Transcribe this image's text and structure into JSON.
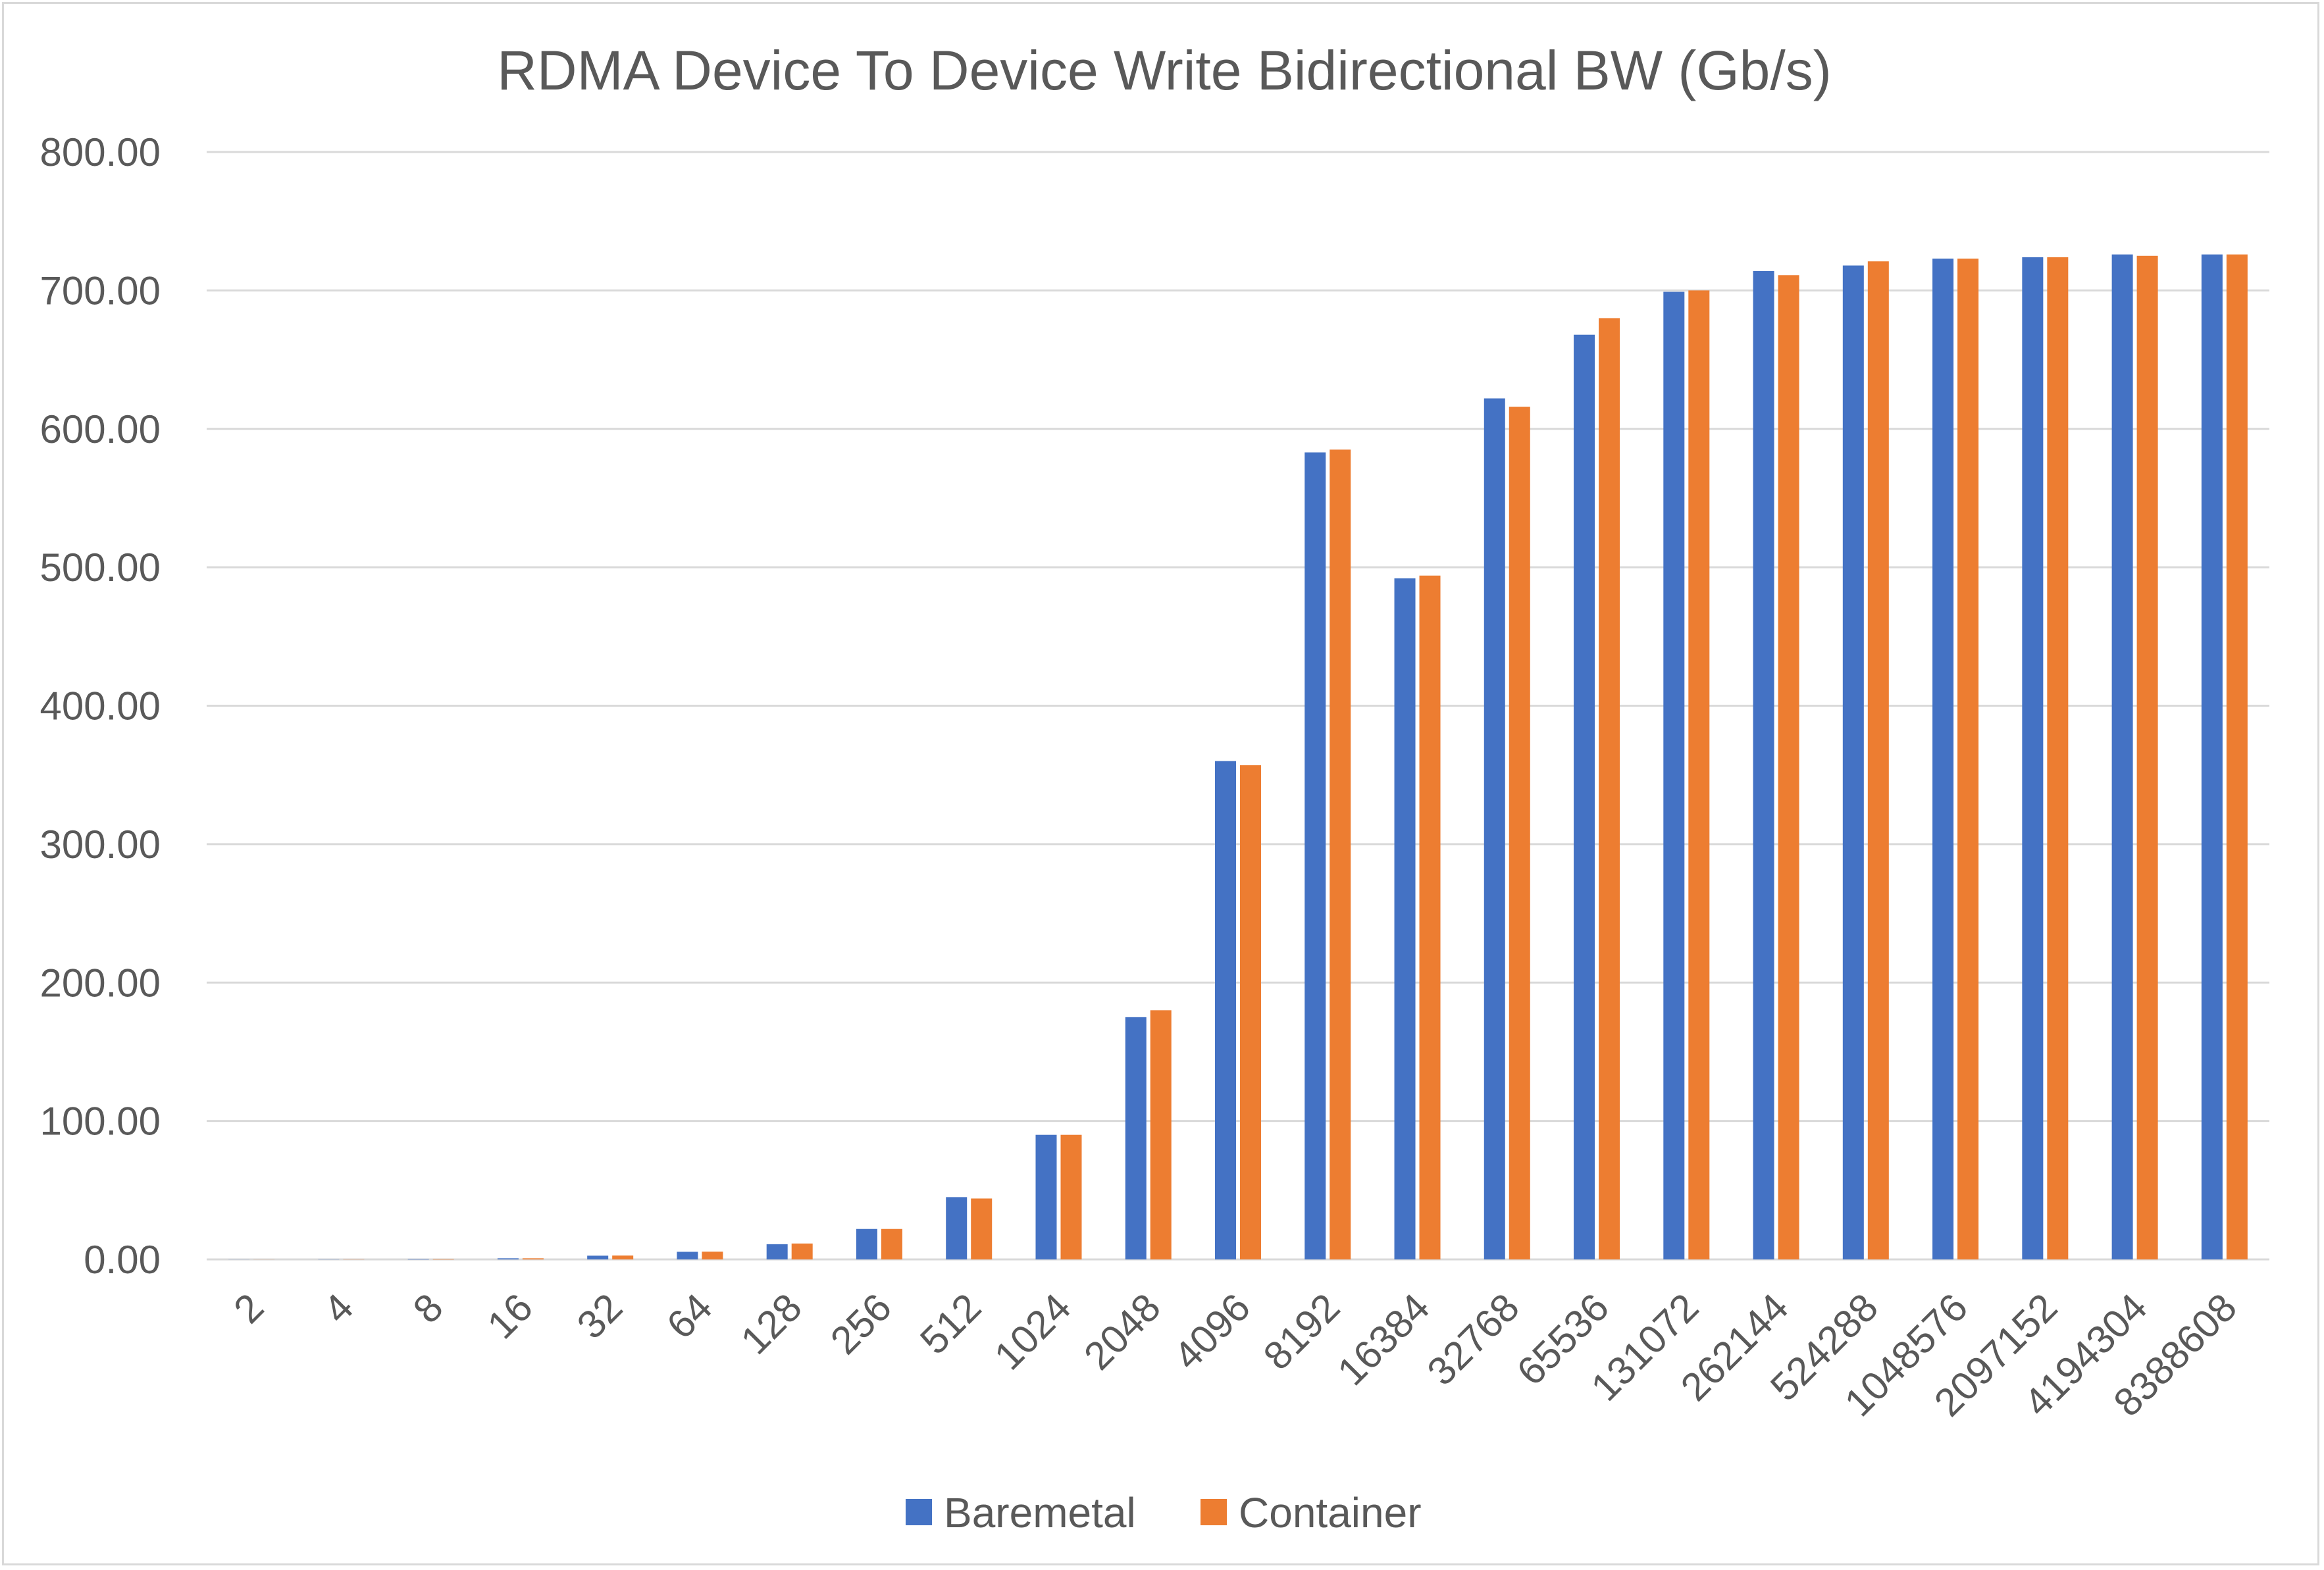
{
  "chart_data": {
    "type": "bar",
    "title": "RDMA Device To Device Write Bidirectional BW (Gb/s)",
    "xlabel": "",
    "ylabel": "",
    "categories": [
      "2",
      "4",
      "8",
      "16",
      "32",
      "64",
      "128",
      "256",
      "512",
      "1024",
      "2048",
      "4096",
      "8192",
      "16384",
      "32768",
      "65536",
      "131072",
      "262144",
      "524288",
      "1048576",
      "2097152",
      "4194304",
      "8388608"
    ],
    "series": [
      {
        "name": "Baremetal",
        "color": "#4472c4",
        "values": [
          0.1,
          0.2,
          0.4,
          0.8,
          2.7,
          5.5,
          11,
          22,
          45,
          90,
          175,
          360,
          583,
          492,
          622,
          668,
          699,
          714,
          718,
          723,
          724,
          726,
          726
        ]
      },
      {
        "name": "Container",
        "color": "#ed7d31",
        "values": [
          0.1,
          0.2,
          0.4,
          0.8,
          2.8,
          5.6,
          11.5,
          22,
          44,
          90,
          180,
          357,
          585,
          494,
          616,
          680,
          700,
          711,
          721,
          723,
          724,
          725,
          726
        ]
      }
    ],
    "ylim": [
      0,
      800
    ],
    "yticks": [
      "0.00",
      "100.00",
      "200.00",
      "300.00",
      "400.00",
      "500.00",
      "600.00",
      "700.00",
      "800.00"
    ],
    "grid": true,
    "legend_position": "bottom"
  }
}
